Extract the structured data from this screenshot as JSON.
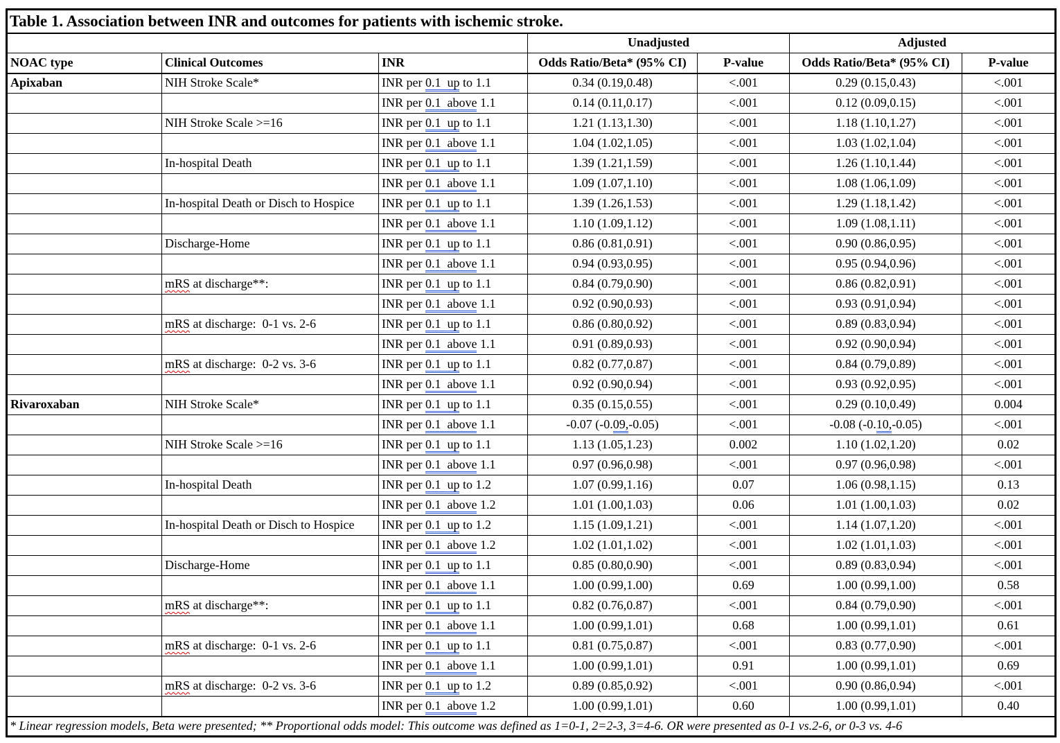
{
  "title": "Table 1. Association between INR and outcomes for patients with ischemic stroke.",
  "header": {
    "unadjusted": "Unadjusted",
    "adjusted": "Adjusted",
    "cols": [
      "NOAC type",
      "Clinical Outcomes",
      "INR",
      "Odds Ratio/Beta* (95% CI)",
      "P-value",
      "Odds Ratio/Beta* (95% CI)",
      "P-value"
    ]
  },
  "colors": {
    "grammar_underline_blue": "#2e5bd7",
    "spellcheck_underline_red": "#d40000",
    "border_black": "#000000"
  },
  "rows": [
    {
      "noac": "Apixaban",
      "outcome": "NIH Stroke Scale*",
      "inr": [
        {
          "t": "INR per "
        },
        {
          "t": "0.1  up",
          "blue": true
        },
        {
          "t": " to 1.1"
        }
      ],
      "u_or": "0.34 (0.19,0.48)",
      "u_p": "<.001",
      "a_or": "0.29 (0.15,0.43)",
      "a_p": "<.001"
    },
    {
      "noac": "",
      "outcome": "",
      "inr": [
        {
          "t": "INR per "
        },
        {
          "t": "0.1  above",
          "blue": true
        },
        {
          "t": " 1.1"
        }
      ],
      "u_or": "0.14 (0.11,0.17)",
      "u_p": "<.001",
      "a_or": "0.12 (0.09,0.15)",
      "a_p": "<.001"
    },
    {
      "noac": "",
      "outcome": "NIH Stroke Scale >=16",
      "inr": [
        {
          "t": "INR per "
        },
        {
          "t": "0.1  up",
          "blue": true
        },
        {
          "t": " to 1.1"
        }
      ],
      "u_or": "1.21 (1.13,1.30)",
      "u_p": "<.001",
      "a_or": "1.18 (1.10,1.27)",
      "a_p": "<.001"
    },
    {
      "noac": "",
      "outcome": "",
      "inr": [
        {
          "t": "INR per "
        },
        {
          "t": "0.1  above",
          "blue": true
        },
        {
          "t": " 1.1"
        }
      ],
      "u_or": "1.04 (1.02,1.05)",
      "u_p": "<.001",
      "a_or": "1.03 (1.02,1.04)",
      "a_p": "<.001"
    },
    {
      "noac": "",
      "outcome": "In-hospital Death",
      "inr": [
        {
          "t": "INR per "
        },
        {
          "t": "0.1  up",
          "blue": true
        },
        {
          "t": " to 1.1"
        }
      ],
      "u_or": "1.39 (1.21,1.59)",
      "u_p": "<.001",
      "a_or": "1.26 (1.10,1.44)",
      "a_p": "<.001"
    },
    {
      "noac": "",
      "outcome": "",
      "inr": [
        {
          "t": "INR per "
        },
        {
          "t": "0.1  above",
          "blue": true
        },
        {
          "t": " 1.1"
        }
      ],
      "u_or": "1.09 (1.07,1.10)",
      "u_p": "<.001",
      "a_or": "1.08 (1.06,1.09)",
      "a_p": "<.001"
    },
    {
      "noac": "",
      "outcome": "In-hospital Death or Disch to Hospice",
      "inr": [
        {
          "t": "INR per "
        },
        {
          "t": "0.1  up",
          "blue": true
        },
        {
          "t": " to 1.1"
        }
      ],
      "u_or": "1.39 (1.26,1.53)",
      "u_p": "<.001",
      "a_or": "1.29 (1.18,1.42)",
      "a_p": "<.001"
    },
    {
      "noac": "",
      "outcome": "",
      "inr": [
        {
          "t": "INR per "
        },
        {
          "t": "0.1  above",
          "blue": true
        },
        {
          "t": " 1.1"
        }
      ],
      "u_or": "1.10 (1.09,1.12)",
      "u_p": "<.001",
      "a_or": "1.09 (1.08,1.11)",
      "a_p": "<.001"
    },
    {
      "noac": "",
      "outcome": "Discharge-Home",
      "inr": [
        {
          "t": "INR per "
        },
        {
          "t": "0.1  up",
          "blue": true
        },
        {
          "t": " to 1.1"
        }
      ],
      "u_or": "0.86 (0.81,0.91)",
      "u_p": "<.001",
      "a_or": "0.90 (0.86,0.95)",
      "a_p": "<.001"
    },
    {
      "noac": "",
      "outcome": "",
      "inr": [
        {
          "t": "INR per "
        },
        {
          "t": "0.1  above",
          "blue": true
        },
        {
          "t": " 1.1"
        }
      ],
      "u_or": "0.94 (0.93,0.95)",
      "u_p": "<.001",
      "a_or": "0.95 (0.94,0.96)",
      "a_p": "<.001"
    },
    {
      "noac": "",
      "outcome": [
        {
          "t": "mRS",
          "wavy": true
        },
        {
          "t": " at discharge**:"
        }
      ],
      "inr": [
        {
          "t": "INR per "
        },
        {
          "t": "0.1  up",
          "blue": true
        },
        {
          "t": " to 1.1"
        }
      ],
      "u_or": "0.84 (0.79,0.90)",
      "u_p": "<.001",
      "a_or": "0.86 (0.82,0.91)",
      "a_p": "<.001"
    },
    {
      "noac": "",
      "outcome": "",
      "inr": [
        {
          "t": "INR per "
        },
        {
          "t": "0.1  above",
          "blue": true
        },
        {
          "t": " 1.1"
        }
      ],
      "u_or": "0.92 (0.90,0.93)",
      "u_p": "<.001",
      "a_or": "0.93 (0.91,0.94)",
      "a_p": "<.001"
    },
    {
      "noac": "",
      "outcome": [
        {
          "t": "mRS",
          "wavy": true
        },
        {
          "t": " at discharge:  0-1 vs. 2-6"
        }
      ],
      "inr": [
        {
          "t": "INR per "
        },
        {
          "t": "0.1  up",
          "blue": true
        },
        {
          "t": " to 1.1"
        }
      ],
      "u_or": "0.86 (0.80,0.92)",
      "u_p": "<.001",
      "a_or": "0.89 (0.83,0.94)",
      "a_p": "<.001"
    },
    {
      "noac": "",
      "outcome": "",
      "inr": [
        {
          "t": "INR per "
        },
        {
          "t": "0.1  above",
          "blue": true
        },
        {
          "t": " 1.1"
        }
      ],
      "u_or": "0.91 (0.89,0.93)",
      "u_p": "<.001",
      "a_or": "0.92 (0.90,0.94)",
      "a_p": "<.001"
    },
    {
      "noac": "",
      "outcome": [
        {
          "t": "mRS",
          "wavy": true
        },
        {
          "t": " at discharge:  0-2 vs. 3-6"
        }
      ],
      "inr": [
        {
          "t": "INR per "
        },
        {
          "t": "0.1  up",
          "blue": true
        },
        {
          "t": " to 1.1"
        }
      ],
      "u_or": "0.82 (0.77,0.87)",
      "u_p": "<.001",
      "a_or": "0.84 (0.79,0.89)",
      "a_p": "<.001"
    },
    {
      "noac": "",
      "outcome": "",
      "inr": [
        {
          "t": "INR per "
        },
        {
          "t": "0.1  above",
          "blue": true
        },
        {
          "t": " 1.1"
        }
      ],
      "u_or": "0.92 (0.90,0.94)",
      "u_p": "<.001",
      "a_or": "0.93 (0.92,0.95)",
      "a_p": "<.001"
    },
    {
      "noac": "Rivaroxaban",
      "outcome": "NIH Stroke Scale*",
      "inr": [
        {
          "t": "INR per "
        },
        {
          "t": "0.1  up",
          "blue": true
        },
        {
          "t": " to 1.1"
        }
      ],
      "u_or": "0.35 (0.15,0.55)",
      "u_p": "<.001",
      "a_or": "0.29 (0.10,0.49)",
      "a_p": "0.004"
    },
    {
      "noac": "",
      "outcome": "",
      "inr": [
        {
          "t": "INR per "
        },
        {
          "t": "0.1  above",
          "blue": true
        },
        {
          "t": " 1.1"
        }
      ],
      "u_or": [
        {
          "t": "-0.07 (-0."
        },
        {
          "t": "09,",
          "blue": true
        },
        {
          "t": "-0.05)"
        }
      ],
      "u_p": "<.001",
      "a_or": [
        {
          "t": "-0.08 (-0."
        },
        {
          "t": "10,",
          "blue": true
        },
        {
          "t": "-0.05)"
        }
      ],
      "a_p": "<.001"
    },
    {
      "noac": "",
      "outcome": "NIH Stroke Scale >=16",
      "inr": [
        {
          "t": "INR per "
        },
        {
          "t": "0.1  up",
          "blue": true
        },
        {
          "t": " to 1.1"
        }
      ],
      "u_or": "1.13 (1.05,1.23)",
      "u_p": "0.002",
      "a_or": "1.10 (1.02,1.20)",
      "a_p": "0.02"
    },
    {
      "noac": "",
      "outcome": "",
      "inr": [
        {
          "t": "INR per "
        },
        {
          "t": "0.1  above",
          "blue": true
        },
        {
          "t": " 1.1"
        }
      ],
      "u_or": "0.97 (0.96,0.98)",
      "u_p": "<.001",
      "a_or": "0.97 (0.96,0.98)",
      "a_p": "<.001"
    },
    {
      "noac": "",
      "outcome": "In-hospital Death",
      "inr": [
        {
          "t": "INR per "
        },
        {
          "t": "0.1  up",
          "blue": true
        },
        {
          "t": " to 1.2"
        }
      ],
      "u_or": "1.07 (0.99,1.16)",
      "u_p": "0.07",
      "a_or": "1.06 (0.98,1.15)",
      "a_p": "0.13"
    },
    {
      "noac": "",
      "outcome": "",
      "inr": [
        {
          "t": "INR per "
        },
        {
          "t": "0.1  above",
          "blue": true
        },
        {
          "t": " 1.2"
        }
      ],
      "u_or": "1.01 (1.00,1.03)",
      "u_p": "0.06",
      "a_or": "1.01 (1.00,1.03)",
      "a_p": "0.02"
    },
    {
      "noac": "",
      "outcome": "In-hospital Death or Disch to Hospice",
      "inr": [
        {
          "t": "INR per "
        },
        {
          "t": "0.1  up",
          "blue": true
        },
        {
          "t": " to 1.2"
        }
      ],
      "u_or": "1.15 (1.09,1.21)",
      "u_p": "<.001",
      "a_or": "1.14 (1.07,1.20)",
      "a_p": "<.001"
    },
    {
      "noac": "",
      "outcome": "",
      "inr": [
        {
          "t": "INR per "
        },
        {
          "t": "0.1  above",
          "blue": true
        },
        {
          "t": " 1.2"
        }
      ],
      "u_or": "1.02 (1.01,1.02)",
      "u_p": "<.001",
      "a_or": "1.02 (1.01,1.03)",
      "a_p": "<.001"
    },
    {
      "noac": "",
      "outcome": "Discharge-Home",
      "inr": [
        {
          "t": "INR per "
        },
        {
          "t": "0.1  up",
          "blue": true
        },
        {
          "t": " to 1.1"
        }
      ],
      "u_or": "0.85 (0.80,0.90)",
      "u_p": "<.001",
      "a_or": "0.89 (0.83,0.94)",
      "a_p": "<.001"
    },
    {
      "noac": "",
      "outcome": "",
      "inr": [
        {
          "t": "INR per "
        },
        {
          "t": "0.1  above",
          "blue": true
        },
        {
          "t": " 1.1"
        }
      ],
      "u_or": "1.00 (0.99,1.00)",
      "u_p": "0.69",
      "a_or": "1.00 (0.99,1.00)",
      "a_p": "0.58"
    },
    {
      "noac": "",
      "outcome": [
        {
          "t": "mRS",
          "wavy": true
        },
        {
          "t": " at discharge**:"
        }
      ],
      "inr": [
        {
          "t": "INR per "
        },
        {
          "t": "0.1  up",
          "blue": true
        },
        {
          "t": " to 1.1"
        }
      ],
      "u_or": "0.82 (0.76,0.87)",
      "u_p": "<.001",
      "a_or": "0.84 (0.79,0.90)",
      "a_p": "<.001"
    },
    {
      "noac": "",
      "outcome": "",
      "inr": [
        {
          "t": "INR per "
        },
        {
          "t": "0.1  above",
          "blue": true
        },
        {
          "t": " 1.1"
        }
      ],
      "u_or": "1.00 (0.99,1.01)",
      "u_p": "0.68",
      "a_or": "1.00 (0.99,1.01)",
      "a_p": "0.61"
    },
    {
      "noac": "",
      "outcome": [
        {
          "t": "mRS",
          "wavy": true
        },
        {
          "t": " at discharge:  0-1 vs. 2-6"
        }
      ],
      "inr": [
        {
          "t": "INR per "
        },
        {
          "t": "0.1  up",
          "blue": true
        },
        {
          "t": " to 1.1"
        }
      ],
      "u_or": "0.81 (0.75,0.87)",
      "u_p": "<.001",
      "a_or": "0.83 (0.77,0.90)",
      "a_p": "<.001"
    },
    {
      "noac": "",
      "outcome": "",
      "inr": [
        {
          "t": "INR per "
        },
        {
          "t": "0.1  above",
          "blue": true
        },
        {
          "t": " 1.1"
        }
      ],
      "u_or": "1.00 (0.99,1.01)",
      "u_p": "0.91",
      "a_or": "1.00 (0.99,1.01)",
      "a_p": "0.69"
    },
    {
      "noac": "",
      "outcome": [
        {
          "t": "mRS",
          "wavy": true
        },
        {
          "t": " at discharge:  0-2 vs. 3-6"
        }
      ],
      "inr": [
        {
          "t": "INR per "
        },
        {
          "t": "0.1  up",
          "blue": true
        },
        {
          "t": " to 1.2"
        }
      ],
      "u_or": "0.89 (0.85,0.92)",
      "u_p": "<.001",
      "a_or": "0.90 (0.86,0.94)",
      "a_p": "<.001"
    },
    {
      "noac": "",
      "outcome": "",
      "inr": [
        {
          "t": "INR per "
        },
        {
          "t": "0.1  above",
          "blue": true
        },
        {
          "t": " 1.2"
        }
      ],
      "u_or": "1.00 (0.99,1.01)",
      "u_p": "0.60",
      "a_or": "1.00 (0.99,1.01)",
      "a_p": "0.40"
    }
  ],
  "footnote": "* Linear regression models, Beta were presented; ** Proportional odds model: This outcome was defined as 1=0-1, 2=2-3, 3=4-6. OR were presented as 0-1 vs.2-6, or 0-3 vs. 4-6"
}
